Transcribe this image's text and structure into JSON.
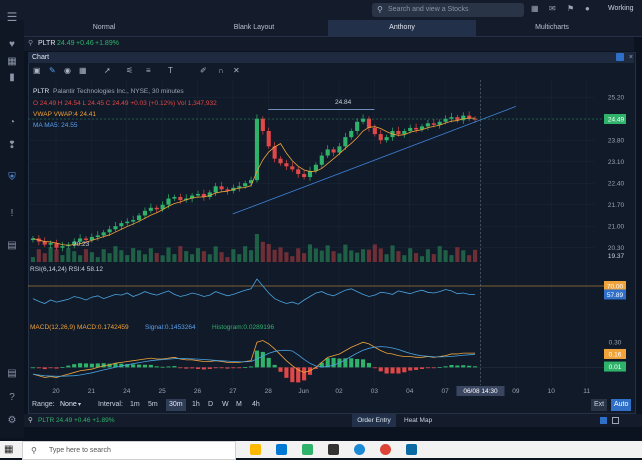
{
  "search": {
    "placeholder": "Search and view a Stocks"
  },
  "top": {
    "workspace": "Working"
  },
  "tabs": [
    {
      "label": "Normal",
      "active": false
    },
    {
      "label": "Blank Layout",
      "active": false
    },
    {
      "label": "Anthony",
      "active": true
    },
    {
      "label": "Multicharts",
      "active": false
    }
  ],
  "symbol_line": {
    "symbol": "PLTR",
    "price": "24.49",
    "change": "+0.46",
    "change_pct": "+1.89%"
  },
  "chart_panel": {
    "title": "Chart"
  },
  "legend": {
    "symbol": "PLTR",
    "company": "Palantir Technologies Inc., NYSE, 30 minutes",
    "ohlc": "O 24.49  H 24.54  L 24.45  C 24.49  +0.03 (+0.12%)  Vol 1,347,932",
    "vwap": "VWAP  VWAP:4 24.41",
    "ma": "MA  MA5: 24.55",
    "annot_high": "24.84",
    "annot_low": "20.23",
    "rsi": "RSI(6,14,24)  RSI:4 58.12",
    "macd": "MACD(12,26,9)   MACD:0.1742459",
    "signal": "Signal:0.1453264",
    "histogram": "Histogram:0.0289196"
  },
  "chart_data": {
    "type": "candlestick",
    "x_tick_labels": [
      "20",
      "21",
      "24",
      "25",
      "26",
      "27",
      "28",
      "Jun",
      "02",
      "03",
      "04",
      "07",
      "08",
      "09",
      "10",
      "11"
    ],
    "price_axis_labels": [
      "25.20",
      "24.49",
      "23.80",
      "23.10",
      "22.40",
      "21.70",
      "21.00",
      "20.30"
    ],
    "ylim": [
      19.9,
      25.5
    ],
    "current_price": "24.49",
    "volume_last": "19.37",
    "rsi_labels": [
      "70.00",
      "57.89"
    ],
    "rsi_level": 70,
    "macd_labels": [
      "0.30",
      "0.16",
      "0.01"
    ],
    "crosshair_date": "06/08 14:30",
    "trendlines": [
      {
        "from": [
          "27",
          21.4
        ],
        "to": [
          "09",
          24.9
        ]
      },
      {
        "from": [
          "28",
          24.8
        ],
        "to": [
          "03",
          24.8
        ]
      }
    ],
    "close_series": [
      20.6,
      20.5,
      20.4,
      20.45,
      20.3,
      20.35,
      20.4,
      20.5,
      20.6,
      20.55,
      20.65,
      20.7,
      20.8,
      20.9,
      21.0,
      21.1,
      21.15,
      21.2,
      21.35,
      21.5,
      21.6,
      21.55,
      21.7,
      21.9,
      21.95,
      21.85,
      21.9,
      22.0,
      22.05,
      21.95,
      22.1,
      22.3,
      22.2,
      22.15,
      22.25,
      22.3,
      22.4,
      22.5,
      24.5,
      24.1,
      23.6,
      23.2,
      23.05,
      22.95,
      22.85,
      22.7,
      22.6,
      22.8,
      23.0,
      23.3,
      23.5,
      23.4,
      23.6,
      23.9,
      24.1,
      24.4,
      24.5,
      24.2,
      24.0,
      23.8,
      23.9,
      24.1,
      24.0,
      24.1,
      24.2,
      24.15,
      24.25,
      24.35,
      24.3,
      24.4,
      24.5,
      24.55,
      24.45,
      24.6,
      24.5,
      24.49
    ],
    "rsi_series": [
      52,
      48,
      45,
      50,
      47,
      49,
      51,
      55,
      53,
      50,
      54,
      56,
      52,
      55,
      58,
      57,
      60,
      55,
      58,
      62,
      59,
      57,
      60,
      63,
      58,
      55,
      57,
      60,
      58,
      55,
      57,
      62,
      59,
      56,
      58,
      61,
      64,
      66,
      80,
      70,
      60,
      52,
      48,
      45,
      47,
      44,
      50,
      55,
      60,
      62,
      58,
      56,
      60,
      64,
      66,
      62,
      58,
      55,
      57,
      61,
      60,
      58,
      63,
      61,
      59,
      62,
      64,
      61,
      60,
      62,
      65,
      63,
      59,
      60,
      58,
      58
    ],
    "macd_series": [
      -0.08,
      -0.1,
      -0.12,
      -0.11,
      -0.12,
      -0.1,
      -0.08,
      -0.06,
      -0.04,
      -0.03,
      -0.02,
      0.0,
      0.02,
      0.03,
      0.05,
      0.06,
      0.07,
      0.08,
      0.09,
      0.1,
      0.11,
      0.1,
      0.1,
      0.11,
      0.12,
      0.1,
      0.09,
      0.09,
      0.08,
      0.07,
      0.07,
      0.08,
      0.07,
      0.06,
      0.06,
      0.06,
      0.07,
      0.08,
      0.3,
      0.32,
      0.28,
      0.22,
      0.15,
      0.08,
      0.02,
      -0.03,
      -0.06,
      -0.04,
      0.0,
      0.06,
      0.12,
      0.14,
      0.16,
      0.2,
      0.24,
      0.27,
      0.3,
      0.28,
      0.24,
      0.2,
      0.17,
      0.16,
      0.14,
      0.13,
      0.13,
      0.12,
      0.12,
      0.13,
      0.12,
      0.13,
      0.14,
      0.16,
      0.16,
      0.17,
      0.17,
      0.17
    ]
  },
  "bottom_bar": {
    "range_label": "Range:",
    "range_value": "None",
    "interval_label": "Interval:",
    "intervals": [
      "1m",
      "5m",
      "30m",
      "1h",
      "D",
      "W",
      "M",
      "4h"
    ],
    "active_interval": "30m",
    "ext": "Ext",
    "auto": "Auto"
  },
  "order_bar": {
    "quote": "PLTR  24.49  +0.46  +1.89%",
    "order_entry": "Order Entry",
    "heat_map": "Heat Map"
  },
  "taskbar": {
    "search_placeholder": "Type here to search"
  },
  "colors": {
    "up": "#2fb36a",
    "down": "#e04848",
    "accent": "#f0a33a",
    "trend": "#3f82d6"
  }
}
